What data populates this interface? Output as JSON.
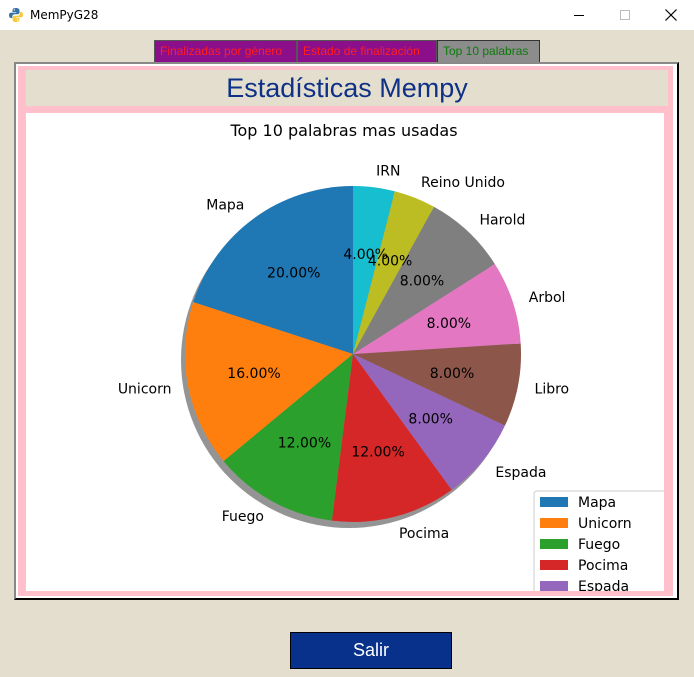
{
  "window": {
    "title": "MemPyG28"
  },
  "tabs": [
    {
      "label": "Finalizadas por género"
    },
    {
      "label": "Estado de finalización"
    },
    {
      "label": "Top 10 palabras"
    }
  ],
  "header": {
    "title": "Estadísticas Mempy"
  },
  "buttons": {
    "salir": "Salir"
  },
  "chart_data": {
    "type": "pie",
    "title": "Top 10 palabras mas usadas",
    "categories": [
      "Mapa",
      "Unicorn",
      "Fuego",
      "Pocima",
      "Espada",
      "Libro",
      "Arbol",
      "Harold",
      "Reino Unido",
      "IRN"
    ],
    "values": [
      20,
      16,
      12,
      12,
      8,
      8,
      8,
      8,
      4,
      4
    ],
    "value_labels": [
      "20.00%",
      "16.00%",
      "12.00%",
      "12.00%",
      "8.00%",
      "8.00%",
      "8.00%",
      "8.00%",
      "4.00%",
      "4.00%"
    ],
    "colors": [
      "#1f77b4",
      "#ff7f0e",
      "#2ca02c",
      "#d62728",
      "#9467bd",
      "#8c564b",
      "#e377c2",
      "#7f7f7f",
      "#bcbd22",
      "#17becf"
    ],
    "start_angle": 90,
    "direction": "counterclockwise",
    "shadow": true,
    "legend": {
      "placement": "lower-right",
      "entries": [
        "Mapa",
        "Unicorn",
        "Fuego",
        "Pocima",
        "Espada"
      ]
    }
  }
}
